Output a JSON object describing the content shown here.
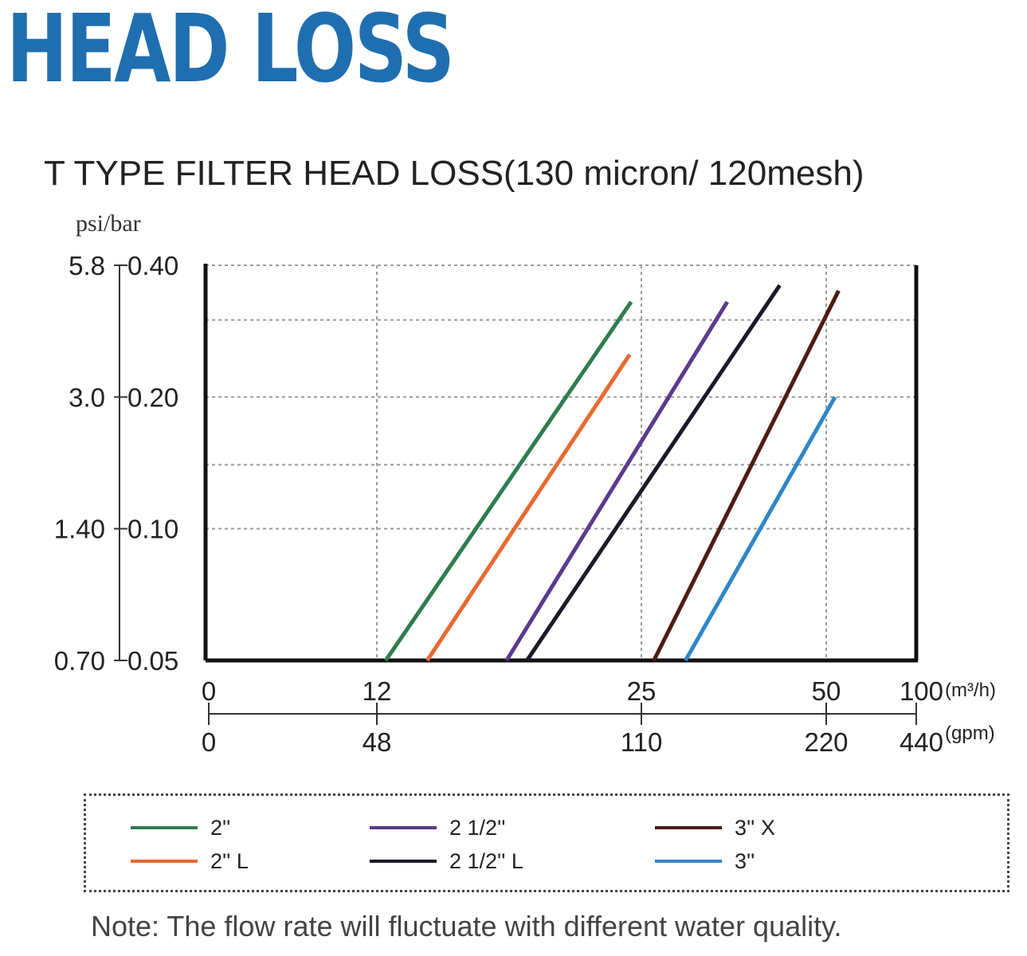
{
  "heading": "HEAD LOSS",
  "note": "Note: The flow rate will fluctuate with different water quality.",
  "colors": {
    "heading": "#1f6fb0"
  },
  "chart_data": {
    "type": "line",
    "title": "T TYPE FILTER HEAD LOSS(130 micron/ 120mesh)",
    "ylabel": "psi/bar",
    "y_scale": "log",
    "ylim": [
      0.05,
      0.4
    ],
    "y_ticks": [
      {
        "value": 0.4,
        "bar_label": "0.40",
        "psi_label": "5.8"
      },
      {
        "value": 0.2,
        "bar_label": "0.20",
        "psi_label": "3.0"
      },
      {
        "value": 0.1,
        "bar_label": "0.10",
        "psi_label": "1.40"
      },
      {
        "value": 0.05,
        "bar_label": "0.05",
        "psi_label": "0.70"
      }
    ],
    "y_gridlines": [
      0.4,
      0.3,
      0.2,
      0.14,
      0.1,
      0.05
    ],
    "x_scale": "log",
    "x_unit_primary": "(m³/h)",
    "x_unit_secondary": "(gpm)",
    "x_ticks": [
      {
        "label": "0",
        "secondary": "0"
      },
      {
        "label": "12",
        "secondary": "48"
      },
      {
        "label": "25",
        "secondary": "110"
      },
      {
        "label": "50",
        "secondary": "220"
      },
      {
        "label": "100",
        "secondary": "440"
      }
    ],
    "grid": true,
    "legend_position": "bottom",
    "series": [
      {
        "name": "2''",
        "color": "#2e7d4f",
        "points": [
          [
            12.3,
            0.05
          ],
          [
            24.3,
            0.33
          ]
        ]
      },
      {
        "name": "2'' L",
        "color": "#e8692f",
        "points": [
          [
            13.8,
            0.05
          ],
          [
            24.2,
            0.25
          ]
        ]
      },
      {
        "name": "2 1/2''",
        "color": "#5b3a8c",
        "points": [
          [
            17.2,
            0.05
          ],
          [
            34.5,
            0.33
          ]
        ]
      },
      {
        "name": "2 1/2'' L",
        "color": "#1a1a2a",
        "points": [
          [
            18.2,
            0.05
          ],
          [
            42.0,
            0.36
          ]
        ]
      },
      {
        "name": "3'' X",
        "color": "#4a1c14",
        "points": [
          [
            26.2,
            0.05
          ],
          [
            55.0,
            0.35
          ]
        ]
      },
      {
        "name": "3''",
        "color": "#2f86c7",
        "points": [
          [
            29.5,
            0.05
          ],
          [
            53.5,
            0.2
          ]
        ]
      }
    ]
  }
}
